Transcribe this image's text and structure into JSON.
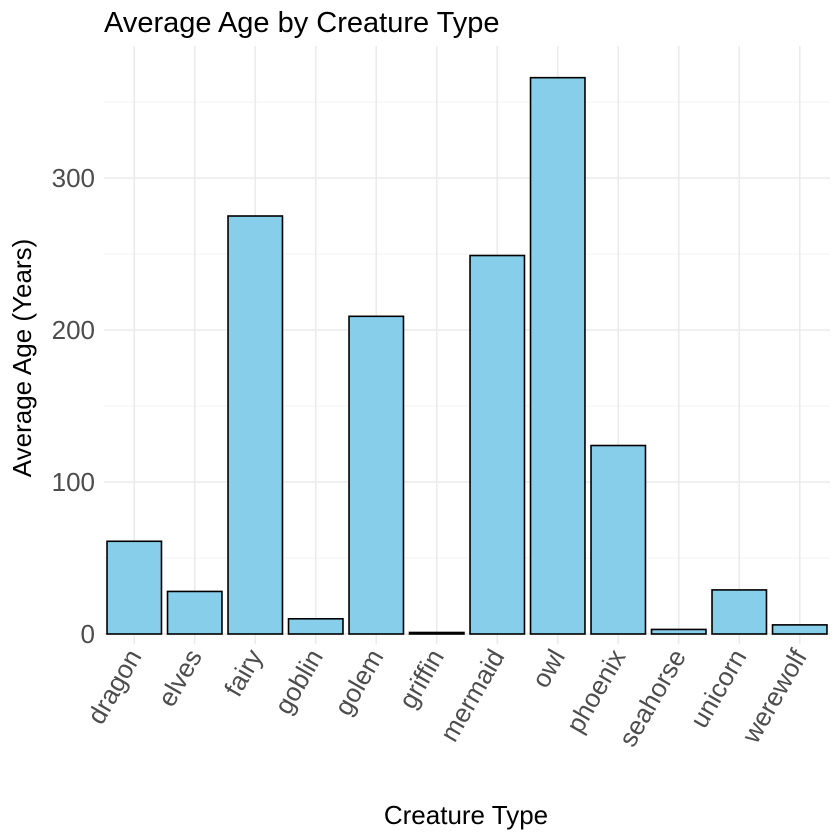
{
  "chart_data": {
    "type": "bar",
    "title": "Average Age by Creature Type",
    "xlabel": "Creature Type",
    "ylabel": "Average Age (Years)",
    "categories": [
      "dragon",
      "elves",
      "fairy",
      "goblin",
      "golem",
      "griffin",
      "mermaid",
      "owl",
      "phoenix",
      "seahorse",
      "unicorn",
      "werewolf"
    ],
    "values": [
      61,
      28,
      275,
      10,
      209,
      1,
      249,
      366,
      124,
      3,
      29,
      6
    ],
    "ylim": [
      0,
      375
    ],
    "yticks": [
      0,
      100,
      200,
      300
    ],
    "ytick_labels": [
      "0",
      "100",
      "200",
      "300"
    ],
    "grid": true,
    "bar_color": "#87CEEB",
    "bar_edge_color": "#000000"
  }
}
